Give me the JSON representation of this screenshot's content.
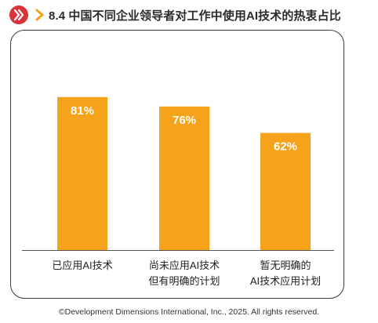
{
  "header": {
    "title": "8.4 中国不同企业领导者对工作中使用AI技术的热衷占比"
  },
  "colors": {
    "bar": "#f7a21b",
    "logo": "#d8343c",
    "chevron": "#f5a11e",
    "frame": "#3a3a3a"
  },
  "icons": {
    "logo": "brand-logo-icon",
    "chevron": "chevron-right-icon"
  },
  "chart_data": {
    "type": "bar",
    "title": "8.4 中国不同企业领导者对工作中使用AI技术的热衷占比",
    "xlabel": "",
    "ylabel": "",
    "categories": [
      [
        "已应用AI技术"
      ],
      [
        "尚未应用AI技术",
        "但有明确的计划"
      ],
      [
        "暂无明确的",
        "AI技术应用计划"
      ]
    ],
    "values": [
      81,
      76,
      62
    ],
    "value_labels": [
      "81%",
      "76%",
      "62%"
    ],
    "ylim": [
      0,
      100
    ],
    "grid": false,
    "legend": "none"
  },
  "footer": {
    "copyright": "©Development Dimensions International, Inc., 2025. All rights reserved."
  }
}
